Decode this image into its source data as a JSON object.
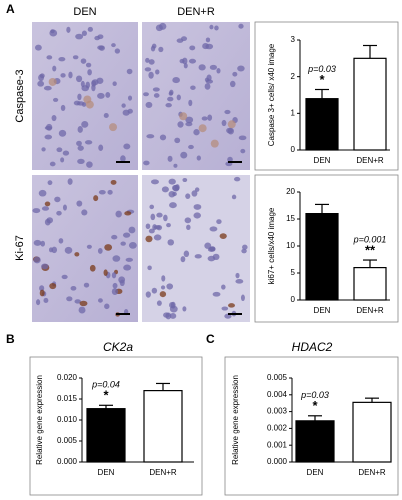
{
  "figure": {
    "panel_labels": [
      "A",
      "B",
      "C"
    ],
    "column_headers": [
      "DEN",
      "DEN+R"
    ],
    "row_labels": [
      "Caspase-3",
      "Ki-67"
    ]
  },
  "chart_data": [
    {
      "type": "bar",
      "y_label": "Caspase 3+ cells/ x40 image",
      "categories": [
        "DEN",
        "DEN+R"
      ],
      "values": [
        1.4,
        2.5
      ],
      "errors": [
        0.25,
        0.35
      ],
      "colors": [
        "#000000",
        "#ffffff"
      ],
      "ylim": [
        0,
        3
      ],
      "yticks": [
        0,
        1,
        2,
        3
      ],
      "annotations": [
        "p=0.03",
        "*"
      ]
    },
    {
      "type": "bar",
      "y_label": "ki67+ cells/x40 image",
      "categories": [
        "DEN",
        "DEN+R"
      ],
      "values": [
        16,
        6
      ],
      "errors": [
        1.7,
        1.4
      ],
      "colors": [
        "#000000",
        "#ffffff"
      ],
      "ylim": [
        0,
        20
      ],
      "yticks": [
        0,
        5,
        10,
        15,
        20
      ],
      "annotations": [
        "p=0.001",
        "**"
      ]
    },
    {
      "type": "bar",
      "title": "CK2a",
      "y_label": "Relative gene expression",
      "categories": [
        "DEN",
        "DEN+R"
      ],
      "values": [
        0.0127,
        0.017
      ],
      "errors": [
        0.0008,
        0.0017
      ],
      "colors": [
        "#000000",
        "#ffffff"
      ],
      "ylim": [
        0,
        0.02
      ],
      "yticks": [
        {
          "value": 0,
          "label": "0.000"
        },
        {
          "value": 0.005,
          "label": "0.005"
        },
        {
          "value": 0.01,
          "label": "0.010"
        },
        {
          "value": 0.015,
          "label": "0.015"
        },
        {
          "value": 0.02,
          "label": "0.020"
        }
      ],
      "annotations": [
        "p=0.04",
        "*"
      ]
    },
    {
      "type": "bar",
      "title": "HDAC2",
      "y_label": "Relative gene expression",
      "categories": [
        "DEN",
        "DEN+R"
      ],
      "values": [
        0.00245,
        0.00355
      ],
      "errors": [
        0.0003,
        0.00025
      ],
      "colors": [
        "#000000",
        "#ffffff"
      ],
      "ylim": [
        0,
        0.005
      ],
      "yticks": [
        {
          "value": 0,
          "label": "0.000"
        },
        {
          "value": 0.001,
          "label": "0.001"
        },
        {
          "value": 0.002,
          "label": "0.002"
        },
        {
          "value": 0.003,
          "label": "0.003"
        },
        {
          "value": 0.004,
          "label": "0.004"
        },
        {
          "value": 0.005,
          "label": "0.005"
        }
      ],
      "annotations": [
        "p=0.03",
        "*"
      ]
    }
  ]
}
